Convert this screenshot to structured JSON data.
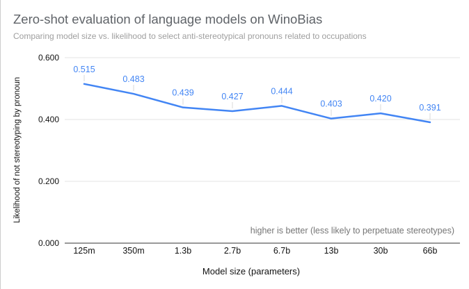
{
  "header": {
    "title": "Zero-shot evaluation of language models on WinoBias",
    "subtitle": "Comparing model size vs. likelihood to select anti-stereotypical pronouns related to occupations"
  },
  "chart_data": {
    "type": "line",
    "title": "Zero-shot evaluation of language models on WinoBias",
    "subtitle": "Comparing model size vs. likelihood to select anti-stereotypical pronouns related to occupations",
    "categories": [
      "125m",
      "350m",
      "1.3b",
      "2.7b",
      "6.7b",
      "13b",
      "30b",
      "66b"
    ],
    "values": [
      0.515,
      0.483,
      0.439,
      0.427,
      0.444,
      0.403,
      0.42,
      0.391
    ],
    "point_labels": [
      "0.515",
      "0.483",
      "0.439",
      "0.427",
      "0.444",
      "0.403",
      "0.420",
      "0.391"
    ],
    "xlabel": "Model size (parameters)",
    "ylabel": "Likelihood of not stereotyping by pronoun",
    "annotation": "higher is better (less likely to perpetuate stereotypes)",
    "ylim": [
      0,
      0.6
    ],
    "yticks": [
      0,
      0.2,
      0.4,
      0.6
    ],
    "ytick_labels": [
      "0.000",
      "0.200",
      "0.400",
      "0.600"
    ],
    "grid": true,
    "legend_position": "none",
    "colors": {
      "line": "#4285f4",
      "point_label": "#4285f4",
      "grid": "#e3e3e3",
      "axis_line": "#333333",
      "tick_label": "#111111",
      "leader_tick": "#d9d9d9",
      "title": "#5f6368",
      "subtitle": "#9e9e9e",
      "annotation": "#757575"
    }
  }
}
